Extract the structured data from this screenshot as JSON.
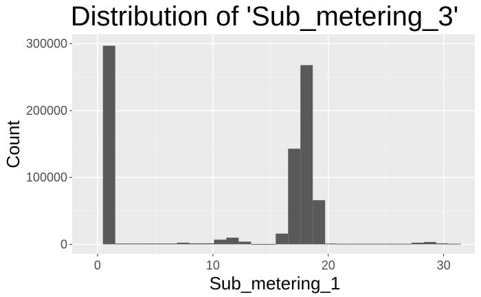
{
  "chart_data": {
    "type": "bar",
    "title": "Distribution of 'Sub_metering_3'",
    "xlabel": "Sub_metering_1",
    "ylabel": "Count",
    "xlim": [
      -2.2,
      32.7
    ],
    "ylim": [
      -14000,
      314000
    ],
    "x_ticks": [
      0,
      10,
      20,
      30
    ],
    "y_ticks": [
      0,
      100000,
      200000,
      300000
    ],
    "x_tick_labels": [
      "0",
      "10",
      "20",
      "30"
    ],
    "y_tick_labels": [
      "0",
      "100000",
      "200000",
      "300000"
    ],
    "grid": true,
    "bin_width": 1.07,
    "bins": [
      {
        "x": 1.0,
        "count": 297000
      },
      {
        "x": 2.07,
        "count": 1200
      },
      {
        "x": 3.14,
        "count": 1200
      },
      {
        "x": 4.21,
        "count": 1200
      },
      {
        "x": 5.28,
        "count": 1200
      },
      {
        "x": 6.35,
        "count": 1200
      },
      {
        "x": 7.42,
        "count": 2500
      },
      {
        "x": 8.49,
        "count": 1500
      },
      {
        "x": 9.56,
        "count": 1500
      },
      {
        "x": 10.63,
        "count": 7000
      },
      {
        "x": 11.7,
        "count": 10000
      },
      {
        "x": 12.77,
        "count": 4000
      },
      {
        "x": 13.84,
        "count": 500
      },
      {
        "x": 14.91,
        "count": 500
      },
      {
        "x": 15.98,
        "count": 16000
      },
      {
        "x": 17.05,
        "count": 143000
      },
      {
        "x": 18.12,
        "count": 268000
      },
      {
        "x": 19.19,
        "count": 66000
      },
      {
        "x": 20.26,
        "count": 1200
      },
      {
        "x": 21.33,
        "count": 800
      },
      {
        "x": 22.4,
        "count": 800
      },
      {
        "x": 23.47,
        "count": 800
      },
      {
        "x": 24.54,
        "count": 800
      },
      {
        "x": 25.61,
        "count": 800
      },
      {
        "x": 26.68,
        "count": 800
      },
      {
        "x": 27.75,
        "count": 2500
      },
      {
        "x": 28.82,
        "count": 3500
      },
      {
        "x": 29.89,
        "count": 1500
      },
      {
        "x": 30.96,
        "count": 800
      }
    ],
    "colors": {
      "panel": "#ebebeb",
      "grid_major": "#ffffff",
      "grid_minor": "#f5f5f5",
      "bar": "#595959",
      "tick": "#333333"
    }
  }
}
